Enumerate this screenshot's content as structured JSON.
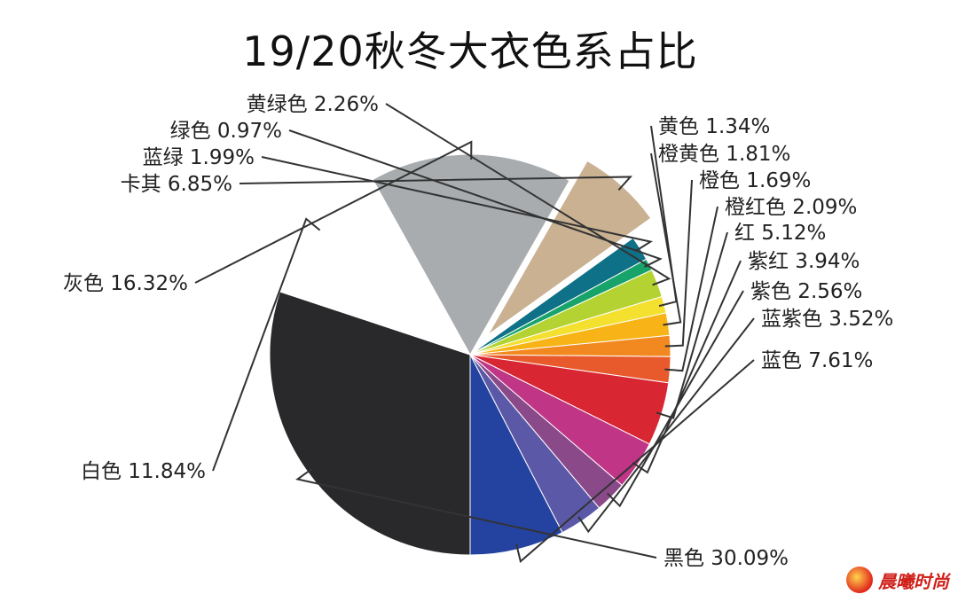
{
  "chart_data": {
    "type": "pie",
    "title": "19/20秋冬大衣色系占比",
    "slices": [
      {
        "label": "黑色 30.09%",
        "value": 30.09,
        "color": "#29292b"
      },
      {
        "label": "白色 11.84%",
        "value": 11.84,
        "color": "#ffffff"
      },
      {
        "label": "灰色 16.32%",
        "value": 16.32,
        "color": "#a9acaf"
      },
      {
        "label": "卡其 6.85%",
        "value": 6.85,
        "color": "#c9b192"
      },
      {
        "label": "蓝绿 1.99%",
        "value": 1.99,
        "color": "#0f7187"
      },
      {
        "label": "绿色 0.97%",
        "value": 0.97,
        "color": "#17a36a"
      },
      {
        "label": "黄绿色 2.26%",
        "value": 2.26,
        "color": "#b4d332"
      },
      {
        "label": "黄色 1.34%",
        "value": 1.34,
        "color": "#f4e02f"
      },
      {
        "label": "橙黄色 1.81%",
        "value": 1.81,
        "color": "#f8b417"
      },
      {
        "label": "橙色 1.69%",
        "value": 1.69,
        "color": "#f28920"
      },
      {
        "label": "橙红色 2.09%",
        "value": 2.09,
        "color": "#e85a2c"
      },
      {
        "label": "红 5.12%",
        "value": 5.12,
        "color": "#d82632"
      },
      {
        "label": "紫红 3.94%",
        "value": 3.94,
        "color": "#c03586"
      },
      {
        "label": "紫色 2.56%",
        "value": 2.56,
        "color": "#8a4a8a"
      },
      {
        "label": "蓝紫色 3.52%",
        "value": 3.52,
        "color": "#5c58a8"
      },
      {
        "label": "蓝色 7.61%",
        "value": 7.61,
        "color": "#2443a0"
      }
    ],
    "exploded": [
      "卡其 6.85%"
    ],
    "legend": "none"
  },
  "watermark": {
    "text": "晨曦时尚"
  }
}
